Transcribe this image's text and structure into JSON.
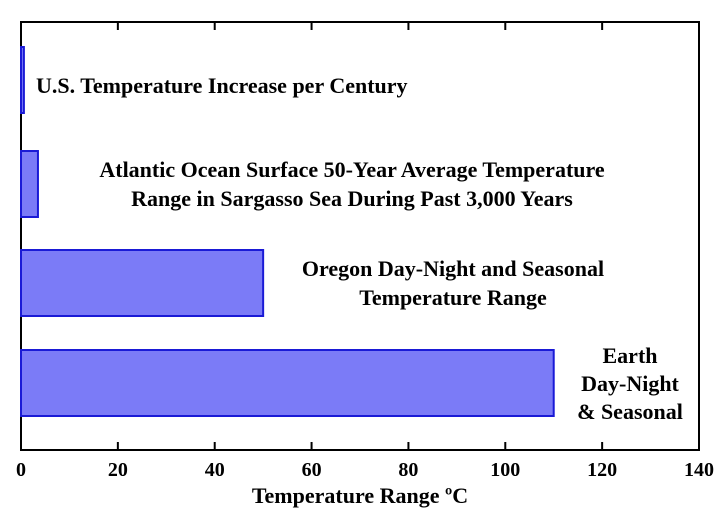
{
  "chart_data": {
    "type": "bar",
    "orientation": "horizontal",
    "categories": [
      [
        "U.S. Temperature Increase per Century"
      ],
      [
        "Atlantic Ocean Surface 50-Year Average Temperature",
        "Range in Sargasso Sea During Past 3,000 Years"
      ],
      [
        "Oregon Day-Night and Seasonal",
        "Temperature Range"
      ],
      [
        "Earth",
        "Day-Night",
        "& Seasonal"
      ]
    ],
    "values": [
      0.6,
      3.5,
      50,
      110
    ],
    "xlabel": "Temperature Range ºC",
    "ylabel": "",
    "title": "",
    "xlim": [
      0,
      140
    ],
    "xticks": [
      0,
      20,
      40,
      60,
      80,
      100,
      120,
      140
    ],
    "grid": false,
    "colors": {
      "bar_fill": "#7b7bf7",
      "bar_stroke": "#1a1ad6",
      "axis": "#000000"
    }
  }
}
